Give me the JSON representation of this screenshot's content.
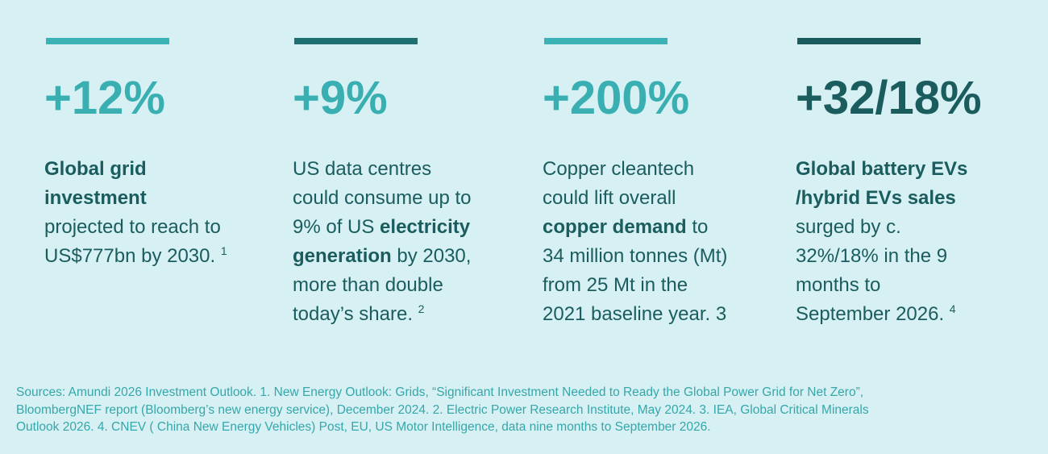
{
  "cards": [
    {
      "bar_color": "#3bb3b6",
      "stat_color": "#3aafb2",
      "stat": "+12%",
      "lines": [
        [
          {
            "text": "Global grid",
            "bold": true
          }
        ],
        [
          {
            "text": "investment",
            "bold": true
          }
        ],
        [
          {
            "text": "projected to reach  to"
          }
        ],
        [
          {
            "text": "US$777bn by 2030. "
          },
          {
            "text": "1",
            "sup": true
          }
        ]
      ]
    },
    {
      "bar_color": "#1f7073",
      "stat_color": "#3aafb2",
      "stat": "+9%",
      "lines": [
        [
          {
            "text": "US data centres"
          }
        ],
        [
          {
            "text": "could consume up to"
          }
        ],
        [
          {
            "text": "9% of US "
          },
          {
            "text": "electricity",
            "bold": true
          }
        ],
        [
          {
            "text": "generation",
            "bold": true
          },
          {
            "text": " by 2030,"
          }
        ],
        [
          {
            "text": "more than double"
          }
        ],
        [
          {
            "text": "today’s share. "
          },
          {
            "text": "2",
            "sup": true
          }
        ]
      ]
    },
    {
      "bar_color": "#3bb3b6",
      "stat_color": "#3aafb2",
      "stat": "+200%",
      "lines": [
        [
          {
            "text": "Copper cleantech"
          }
        ],
        [
          {
            "text": "could lift overall"
          }
        ],
        [
          {
            "text": "copper demand",
            "bold": true
          },
          {
            "text": " to"
          }
        ],
        [
          {
            "text": "34 million tonnes (Mt)"
          }
        ],
        [
          {
            "text": "from 25 Mt in the"
          }
        ],
        [
          {
            "text": "2021 baseline year. 3"
          }
        ]
      ]
    },
    {
      "bar_color": "#1a5b5d",
      "stat_color": "#1b5d5e",
      "stat": "+32/18%",
      "lines": [
        [
          {
            "text": "Global battery EVs",
            "bold": true
          }
        ],
        [
          {
            "text": "/hybrid EVs sales",
            "bold": true
          }
        ],
        [
          {
            "text": "surged by c."
          }
        ],
        [
          {
            "text": "32%/18% in the 9"
          }
        ],
        [
          {
            "text": "months to"
          }
        ],
        [
          {
            "text": "September 2026. "
          },
          {
            "text": "4",
            "sup": true
          }
        ]
      ]
    }
  ],
  "sources": [
    "Sources: Amundi 2026 Investment Outlook. 1.  New Energy Outlook: Grids, “Significant Investment Needed to Ready the Global Power Grid for Net Zero”,",
    "BloombergNEF report (Bloomberg’s new energy service), December 2024.  2. Electric Power Research Institute, May 2024. 3. IEA, Global Critical Minerals",
    "Outlook 2026. 4. CNEV ( China New Energy Vehicles) Post, EU, US Motor Intelligence, data nine months to September 2026."
  ]
}
